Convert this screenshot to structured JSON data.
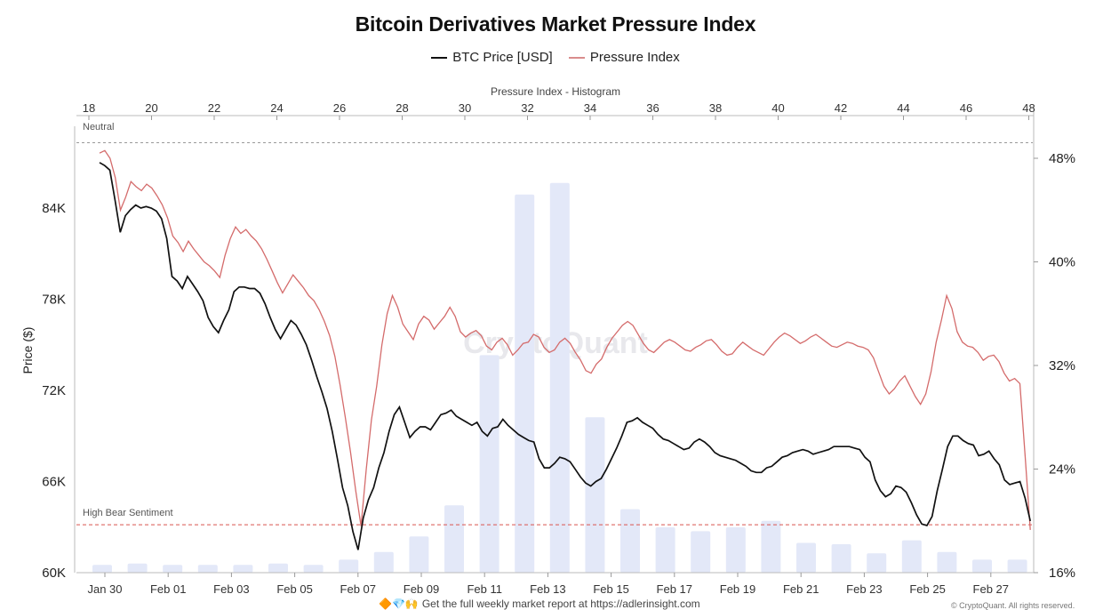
{
  "chart_data": {
    "title": "Bitcoin Derivatives Market Pressure Index",
    "type": "line",
    "legend": [
      {
        "name": "BTC Price [USD]",
        "color": "#111111"
      },
      {
        "name": "Pressure Index",
        "color": "#d98c8c"
      }
    ],
    "ylabel": "Price ($)",
    "ylim": [
      60000,
      90000
    ],
    "y_ticks": [
      "60K",
      "66K",
      "72K",
      "78K",
      "84K"
    ],
    "y_tick_values": [
      60000,
      66000,
      72000,
      78000,
      84000
    ],
    "right_ylim": [
      16,
      50
    ],
    "right_ticks": [
      "16%",
      "24%",
      "32%",
      "40%",
      "48%"
    ],
    "right_tick_values": [
      16,
      24,
      32,
      40,
      48
    ],
    "x_labels": [
      "Jan 30",
      "Feb 01",
      "Feb 03",
      "Feb 05",
      "Feb 07",
      "Feb 09",
      "Feb 11",
      "Feb 13",
      "Feb 15",
      "Feb 17",
      "Feb 19",
      "Feb 21",
      "Feb 23",
      "Feb 25",
      "Feb 27"
    ],
    "top_axis_label": "Pressure Index - Histogram",
    "top_ticks": [
      "18",
      "20",
      "22",
      "24",
      "26",
      "28",
      "30",
      "32",
      "34",
      "36",
      "38",
      "40",
      "42",
      "44",
      "46",
      "48"
    ],
    "top_tick_values": [
      18,
      20,
      22,
      24,
      26,
      28,
      30,
      32,
      34,
      36,
      38,
      40,
      42,
      44,
      46,
      48
    ],
    "top_xlim": [
      18,
      48.4
    ],
    "annotations": {
      "neutral": "Neutral",
      "bear": "High Bear Sentiment"
    },
    "neutral_level": 49.2,
    "bear_level": 19.7,
    "series": [
      {
        "name": "BTC Price [USD]",
        "x_range_days": [
          0,
          29.6
        ],
        "values": [
          87000,
          86800,
          86500,
          84500,
          82400,
          83500,
          83900,
          84200,
          84000,
          84100,
          84000,
          83800,
          83300,
          82000,
          79500,
          79200,
          78700,
          79500,
          79000,
          78500,
          77900,
          76800,
          76200,
          75800,
          76600,
          77300,
          78500,
          78800,
          78800,
          78700,
          78700,
          78400,
          77700,
          76800,
          76000,
          75400,
          76000,
          76600,
          76300,
          75700,
          75000,
          74000,
          72900,
          71900,
          70800,
          69300,
          67500,
          65600,
          64400,
          62700,
          61500,
          63600,
          64800,
          65600,
          66900,
          67900,
          69300,
          70400,
          70900,
          69900,
          68900,
          69300,
          69600,
          69600,
          69400,
          69900,
          70400,
          70500,
          70700,
          70300,
          70100,
          69900,
          69700,
          69900,
          69300,
          69000,
          69500,
          69600,
          70100,
          69700,
          69400,
          69100,
          68900,
          68700,
          68600,
          67500,
          66900,
          66900,
          67200,
          67600,
          67500,
          67300,
          66800,
          66300,
          65900,
          65700,
          66000,
          66200,
          66800,
          67500,
          68200,
          69000,
          69900,
          70000,
          70200,
          69900,
          69700,
          69500,
          69100,
          68800,
          68700,
          68500,
          68300,
          68100,
          68200,
          68600,
          68800,
          68600,
          68300,
          67900,
          67700,
          67600,
          67500,
          67400,
          67200,
          67000,
          66700,
          66600,
          66600,
          66900,
          67000,
          67300,
          67600,
          67700,
          67900,
          68000,
          68100,
          68000,
          67800,
          67900,
          68000,
          68100,
          68300,
          68300,
          68300,
          68300,
          68200,
          68100,
          67600,
          67300,
          66100,
          65400,
          65000,
          65200,
          65700,
          65600,
          65300,
          64600,
          63800,
          63200,
          63100,
          63700,
          65400,
          66800,
          68300,
          69000,
          69000,
          68700,
          68500,
          68400,
          67700,
          67800,
          68000,
          67500,
          67100,
          66100,
          65800,
          65900,
          66000,
          64900,
          63400
        ]
      },
      {
        "name": "Pressure Index",
        "x_range_days": [
          0,
          29.6
        ],
        "values": [
          48.4,
          48.6,
          48.0,
          46.5,
          44.0,
          45.0,
          46.2,
          45.8,
          45.5,
          46.0,
          45.7,
          45.1,
          44.4,
          43.4,
          42.0,
          41.5,
          40.8,
          41.6,
          41.0,
          40.5,
          40.0,
          39.7,
          39.3,
          38.8,
          40.5,
          41.8,
          42.7,
          42.2,
          42.5,
          42.0,
          41.6,
          41.0,
          40.2,
          39.3,
          38.4,
          37.6,
          38.3,
          39.0,
          38.5,
          38.0,
          37.4,
          37.0,
          36.3,
          35.4,
          34.3,
          32.7,
          30.5,
          28.0,
          25.3,
          22.3,
          19.6,
          24.0,
          27.8,
          30.4,
          33.6,
          36.0,
          37.4,
          36.5,
          35.2,
          34.6,
          34.0,
          35.2,
          35.8,
          35.5,
          34.8,
          35.3,
          35.8,
          36.5,
          35.8,
          34.6,
          34.2,
          34.5,
          34.7,
          34.3,
          33.5,
          33.2,
          33.8,
          34.1,
          33.6,
          32.8,
          33.2,
          33.7,
          33.8,
          34.4,
          34.2,
          33.4,
          33.0,
          33.2,
          33.8,
          34.1,
          33.7,
          33.0,
          32.4,
          31.6,
          31.4,
          32.1,
          32.5,
          33.4,
          34.1,
          34.6,
          35.1,
          35.4,
          35.1,
          34.4,
          33.7,
          33.2,
          33.0,
          33.4,
          33.8,
          34.0,
          33.8,
          33.5,
          33.2,
          33.1,
          33.4,
          33.6,
          33.9,
          34.0,
          33.6,
          33.1,
          32.8,
          32.9,
          33.4,
          33.8,
          33.5,
          33.2,
          33.0,
          32.8,
          33.3,
          33.8,
          34.2,
          34.5,
          34.3,
          34.0,
          33.7,
          33.9,
          34.2,
          34.4,
          34.1,
          33.8,
          33.5,
          33.4,
          33.6,
          33.8,
          33.7,
          33.5,
          33.4,
          33.2,
          32.6,
          31.5,
          30.4,
          29.8,
          30.2,
          30.8,
          31.2,
          30.4,
          29.6,
          29.0,
          29.8,
          31.5,
          33.8,
          35.5,
          37.4,
          36.4,
          34.6,
          33.8,
          33.5,
          33.4,
          33.0,
          32.4,
          32.7,
          32.8,
          32.3,
          31.4,
          30.8,
          31.0,
          30.6,
          25.0,
          19.3
        ]
      },
      {
        "name": "Pressure Index - Histogram",
        "type": "bar",
        "values": [
          16.6,
          16.7,
          16.6,
          16.6,
          16.6,
          16.7,
          16.6,
          17.0,
          17.6,
          18.8,
          21.2,
          32.8,
          45.2,
          46.1,
          28.0,
          20.9,
          19.5,
          19.2,
          19.5,
          20.0,
          18.3,
          18.2,
          17.5,
          18.5,
          17.6,
          17.0,
          17.0
        ]
      }
    ]
  },
  "watermark": "CryptoQuant",
  "footer": {
    "emoji": "🔶💎🙌",
    "text": "Get the full weekly market report at https://adlerinsight.com",
    "copyright": "© CryptoQuant. All rights reserved."
  }
}
